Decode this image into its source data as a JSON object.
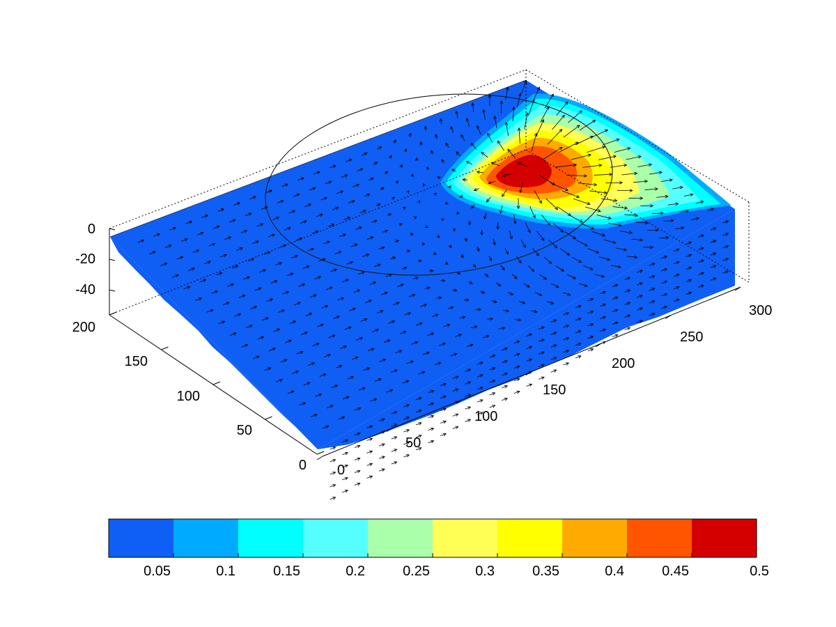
{
  "chart_data": {
    "type": "heatmap",
    "title": "",
    "xlabel": "",
    "ylabel": "",
    "zlabel": "",
    "view": "3d-block-with-vector-field",
    "x_ticks": [
      "0",
      "50",
      "100",
      "150",
      "200",
      "250",
      "300"
    ],
    "y_ticks": [
      "0",
      "50",
      "100",
      "150",
      "200"
    ],
    "z_ticks": [
      "0",
      "-20",
      "-40"
    ],
    "xlim": [
      0,
      300
    ],
    "ylim": [
      0,
      200
    ],
    "zlim": [
      -50,
      0
    ],
    "grid": false,
    "overlay": "circle outline on top surface",
    "hotspot": {
      "x": 200,
      "y": 185,
      "peak": 0.45
    },
    "colorbar": {
      "tick_labels": [
        "0.05",
        "0.1",
        "0.15",
        "0.2",
        "0.25",
        "0.3",
        "0.35",
        "0.4",
        "0.45",
        "0.5"
      ],
      "levels": [
        0,
        0.05,
        0.1,
        0.15,
        0.2,
        0.25,
        0.3,
        0.35,
        0.4,
        0.45,
        0.5
      ],
      "colors": [
        "#0f5ff5",
        "#00aaff",
        "#00ffff",
        "#55ffff",
        "#aaffaa",
        "#ffff55",
        "#ffff00",
        "#ffaa00",
        "#ff5500",
        "#d40000"
      ]
    }
  }
}
